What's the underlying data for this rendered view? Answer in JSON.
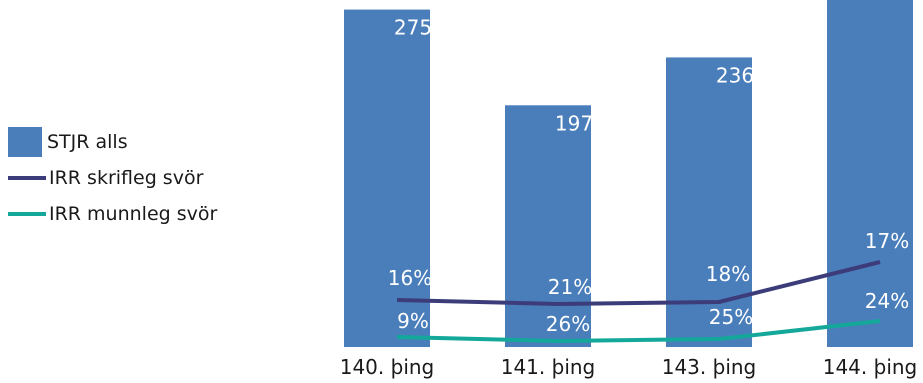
{
  "chart_data": {
    "type": "bar",
    "categories": [
      "140. þing",
      "141. þing",
      "143. þing",
      "144. þing"
    ],
    "series": [
      {
        "name": "STJR alls",
        "type": "bar",
        "values": [
          275,
          197,
          236,
          290
        ],
        "labels": [
          "275",
          "197",
          "236",
          ""
        ],
        "color": "#4a7ebb"
      },
      {
        "name": "IRR skrifleg svör",
        "type": "line",
        "values": [
          16,
          21,
          18,
          17
        ],
        "labels": [
          "16%",
          "21%",
          "18%",
          "17%"
        ],
        "color": "#3c3c7a"
      },
      {
        "name": "IRR munnleg svör",
        "type": "line",
        "values": [
          9,
          26,
          25,
          24
        ],
        "labels": [
          "9%",
          "26%",
          "25%",
          "24%"
        ],
        "color": "#14a89a"
      }
    ],
    "legend_position": "left",
    "grid": false
  }
}
